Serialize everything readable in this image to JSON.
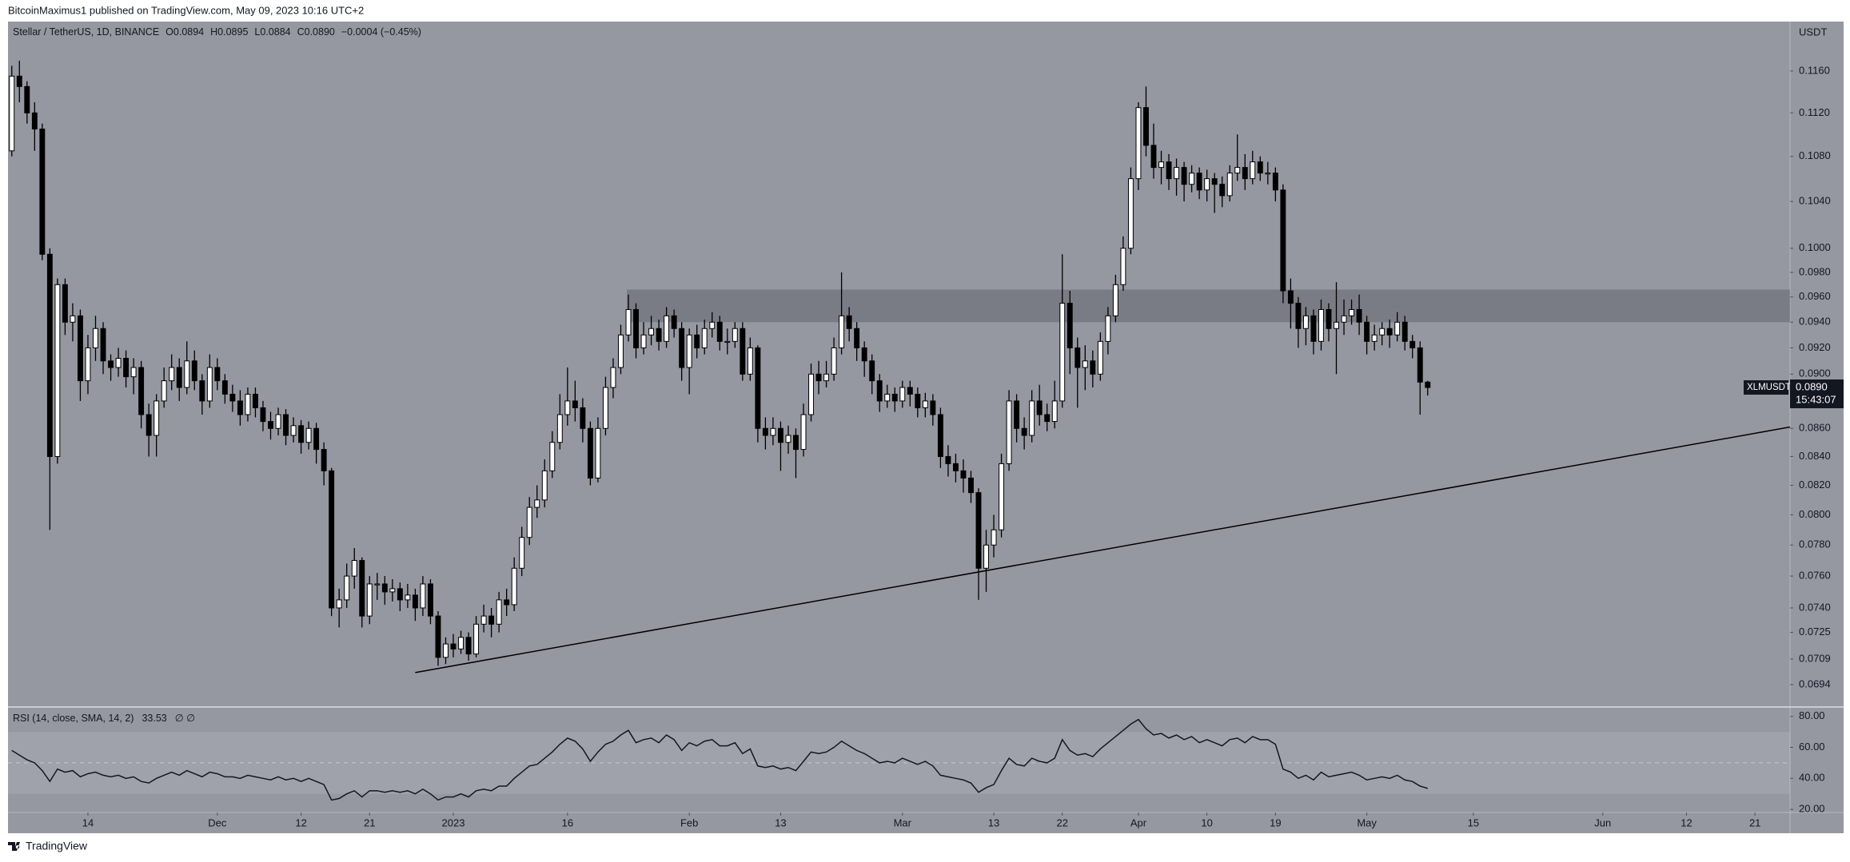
{
  "header": "BitcoinMaximus1 published on TradingView.com, May 09, 2023 10:16 UTC+2",
  "footer": "TradingView",
  "chart_data": [
    {
      "type": "candlestick",
      "title": "Stellar / TetherUS, 1D, BINANCE",
      "ohlc_legend": [
        {
          "key": "O",
          "value": "0.0894"
        },
        {
          "key": "H",
          "value": "0.0895"
        },
        {
          "key": "L",
          "value": "0.0884"
        },
        {
          "key": "C",
          "value": "0.0890"
        }
      ],
      "change": "−0.0004 (−0.45%)",
      "axis_unit": "USDT",
      "symbol": "XLMUSDT",
      "countdown": "15:43:07",
      "last_price": {
        "value": 0.089,
        "label": "0.0890"
      },
      "up_color": "#ffffff",
      "down_color": "#000000",
      "wick_color": "#000000",
      "log_scale": true,
      "grid": false,
      "xlim": [
        -0.5,
        233.6
      ],
      "ylim": [
        0.0682,
        0.1209
      ],
      "yticks": [
        {
          "value": 0.116,
          "label": "0.1160"
        },
        {
          "value": 0.112,
          "label": "0.1120"
        },
        {
          "value": 0.108,
          "label": "0.1080"
        },
        {
          "value": 0.104,
          "label": "0.1040"
        },
        {
          "value": 0.1,
          "label": "0.1000"
        },
        {
          "value": 0.098,
          "label": "0.0980"
        },
        {
          "value": 0.096,
          "label": "0.0960"
        },
        {
          "value": 0.094,
          "label": "0.0940"
        },
        {
          "value": 0.092,
          "label": "0.0920"
        },
        {
          "value": 0.09,
          "label": "0.0900"
        },
        {
          "value": 0.086,
          "label": "0.0860"
        },
        {
          "value": 0.084,
          "label": "0.0840"
        },
        {
          "value": 0.082,
          "label": "0.0820"
        },
        {
          "value": 0.08,
          "label": "0.0800"
        },
        {
          "value": 0.078,
          "label": "0.0780"
        },
        {
          "value": 0.076,
          "label": "0.0760"
        },
        {
          "value": 0.074,
          "label": "0.0740"
        },
        0.0725,
        0.0709,
        0.0694
      ],
      "open": [
        0.1085,
        0.1155,
        0.1145,
        0.112,
        0.1105,
        0.0995,
        0.084,
        0.097,
        0.094,
        0.0945,
        0.0895,
        0.092,
        0.0935,
        0.091,
        0.0905,
        0.0912,
        0.0898,
        0.0905,
        0.087,
        0.0855,
        0.088,
        0.0895,
        0.0905,
        0.089,
        0.091,
        0.0895,
        0.088,
        0.0905,
        0.0895,
        0.0885,
        0.088,
        0.087,
        0.0885,
        0.0875,
        0.0865,
        0.086,
        0.087,
        0.0855,
        0.0862,
        0.085,
        0.086,
        0.0845,
        0.083,
        0.074,
        0.0745,
        0.076,
        0.077,
        0.0735,
        0.0755,
        0.0755,
        0.075,
        0.0752,
        0.0745,
        0.0748,
        0.074,
        0.0755,
        0.0735,
        0.071,
        0.0718,
        0.0715,
        0.0722,
        0.0712,
        0.073,
        0.0735,
        0.073,
        0.0745,
        0.0742,
        0.0765,
        0.0785,
        0.0805,
        0.081,
        0.083,
        0.085,
        0.087,
        0.088,
        0.0875,
        0.086,
        0.0825,
        0.086,
        0.089,
        0.0905,
        0.093,
        0.095,
        0.092,
        0.093,
        0.0935,
        0.0925,
        0.0945,
        0.0935,
        0.0905,
        0.093,
        0.092,
        0.0935,
        0.094,
        0.0925,
        0.0925,
        0.0935,
        0.09,
        0.092,
        0.086,
        0.0855,
        0.086,
        0.085,
        0.0855,
        0.0845,
        0.087,
        0.09,
        0.0895,
        0.09,
        0.092,
        0.0945,
        0.0935,
        0.092,
        0.091,
        0.0895,
        0.088,
        0.0885,
        0.088,
        0.089,
        0.0885,
        0.0875,
        0.088,
        0.087,
        0.084,
        0.0835,
        0.083,
        0.0825,
        0.0815,
        0.0765,
        0.078,
        0.079,
        0.0835,
        0.088,
        0.086,
        0.0855,
        0.088,
        0.087,
        0.0865,
        0.088,
        0.0955,
        0.092,
        0.0905,
        0.091,
        0.09,
        0.0925,
        0.0945,
        0.097,
        0.1,
        0.106,
        0.1125,
        0.109,
        0.107,
        0.1075,
        0.106,
        0.107,
        0.1055,
        0.1065,
        0.105,
        0.106,
        0.1055,
        0.1045,
        0.1065,
        0.107,
        0.106,
        0.1075,
        0.1065,
        0.1065,
        0.105,
        0.0965,
        0.0955,
        0.0935,
        0.0945,
        0.0925,
        0.095,
        0.0935,
        0.094,
        0.0945,
        0.095,
        0.094,
        0.0925,
        0.093,
        0.0935,
        0.093,
        0.094,
        0.0925,
        0.092,
        0.0894
      ],
      "high": [
        0.1165,
        0.117,
        0.115,
        0.113,
        0.111,
        0.1,
        0.0975,
        0.0975,
        0.0955,
        0.095,
        0.093,
        0.0945,
        0.094,
        0.0915,
        0.092,
        0.0918,
        0.0912,
        0.091,
        0.0878,
        0.0885,
        0.0905,
        0.0915,
        0.0912,
        0.0925,
        0.0918,
        0.09,
        0.0915,
        0.0912,
        0.09,
        0.0892,
        0.0888,
        0.089,
        0.089,
        0.088,
        0.0872,
        0.0875,
        0.0874,
        0.0868,
        0.0866,
        0.0865,
        0.0864,
        0.085,
        0.0832,
        0.0752,
        0.0768,
        0.0778,
        0.0772,
        0.076,
        0.0762,
        0.076,
        0.0758,
        0.0756,
        0.0755,
        0.0752,
        0.076,
        0.0758,
        0.0738,
        0.0722,
        0.0724,
        0.0726,
        0.0725,
        0.0735,
        0.0742,
        0.074,
        0.075,
        0.0752,
        0.0772,
        0.0792,
        0.0812,
        0.082,
        0.0838,
        0.0858,
        0.0885,
        0.0905,
        0.0895,
        0.0882,
        0.0865,
        0.0868,
        0.0898,
        0.0912,
        0.0938,
        0.0962,
        0.0955,
        0.094,
        0.0945,
        0.0942,
        0.0952,
        0.095,
        0.094,
        0.0935,
        0.0938,
        0.0942,
        0.0948,
        0.0945,
        0.0935,
        0.094,
        0.094,
        0.0928,
        0.0922,
        0.0868,
        0.0868,
        0.0865,
        0.0862,
        0.086,
        0.0878,
        0.0908,
        0.091,
        0.091,
        0.0928,
        0.098,
        0.0952,
        0.094,
        0.0925,
        0.0915,
        0.09,
        0.0892,
        0.089,
        0.0895,
        0.0895,
        0.089,
        0.0886,
        0.0885,
        0.0875,
        0.0848,
        0.0842,
        0.0838,
        0.083,
        0.0818,
        0.079,
        0.08,
        0.0842,
        0.0888,
        0.0885,
        0.0868,
        0.0888,
        0.0892,
        0.0878,
        0.0895,
        0.0995,
        0.0965,
        0.0928,
        0.0922,
        0.0918,
        0.0932,
        0.0952,
        0.0978,
        0.101,
        0.107,
        0.113,
        0.1145,
        0.111,
        0.1085,
        0.1082,
        0.1078,
        0.1075,
        0.1072,
        0.107,
        0.1068,
        0.1065,
        0.1062,
        0.1072,
        0.11,
        0.1082,
        0.1085,
        0.108,
        0.1075,
        0.107,
        0.1055,
        0.0975,
        0.096,
        0.0952,
        0.095,
        0.0958,
        0.0955,
        0.0972,
        0.0958,
        0.0958,
        0.0962,
        0.0945,
        0.0938,
        0.094,
        0.0942,
        0.0948,
        0.0945,
        0.093,
        0.0925,
        0.0895
      ],
      "low": [
        0.108,
        0.113,
        0.111,
        0.1085,
        0.099,
        0.079,
        0.0835,
        0.093,
        0.0925,
        0.088,
        0.0885,
        0.091,
        0.09,
        0.0895,
        0.0898,
        0.089,
        0.0885,
        0.086,
        0.084,
        0.084,
        0.0875,
        0.0888,
        0.088,
        0.0885,
        0.0888,
        0.087,
        0.0875,
        0.0888,
        0.0878,
        0.0872,
        0.0862,
        0.0865,
        0.0868,
        0.0858,
        0.0852,
        0.0855,
        0.0848,
        0.085,
        0.0842,
        0.0845,
        0.0835,
        0.082,
        0.0735,
        0.0728,
        0.074,
        0.0752,
        0.0728,
        0.073,
        0.0745,
        0.0742,
        0.0744,
        0.0738,
        0.074,
        0.0732,
        0.0735,
        0.073,
        0.0705,
        0.0706,
        0.071,
        0.0712,
        0.0708,
        0.071,
        0.0725,
        0.0722,
        0.0725,
        0.0735,
        0.0738,
        0.076,
        0.078,
        0.0798,
        0.0805,
        0.0825,
        0.0845,
        0.0862,
        0.0865,
        0.085,
        0.082,
        0.0822,
        0.0855,
        0.0882,
        0.09,
        0.0925,
        0.0912,
        0.0915,
        0.0922,
        0.0918,
        0.092,
        0.0928,
        0.0895,
        0.0885,
        0.0912,
        0.0915,
        0.0928,
        0.0918,
        0.0915,
        0.092,
        0.0895,
        0.0895,
        0.085,
        0.0845,
        0.0848,
        0.083,
        0.0842,
        0.0825,
        0.084,
        0.0865,
        0.0885,
        0.089,
        0.0895,
        0.0915,
        0.0925,
        0.091,
        0.0898,
        0.0885,
        0.0872,
        0.0875,
        0.0872,
        0.0875,
        0.0876,
        0.0868,
        0.0868,
        0.0862,
        0.0832,
        0.0826,
        0.0822,
        0.0815,
        0.0808,
        0.0745,
        0.075,
        0.0772,
        0.0785,
        0.083,
        0.085,
        0.0845,
        0.085,
        0.0862,
        0.0858,
        0.086,
        0.0875,
        0.09,
        0.0875,
        0.0888,
        0.089,
        0.0895,
        0.0915,
        0.094,
        0.0965,
        0.0995,
        0.105,
        0.108,
        0.106,
        0.1055,
        0.105,
        0.1045,
        0.104,
        0.1048,
        0.1042,
        0.104,
        0.103,
        0.1035,
        0.104,
        0.1058,
        0.105,
        0.1055,
        0.1058,
        0.1055,
        0.104,
        0.0955,
        0.0935,
        0.092,
        0.0922,
        0.0915,
        0.0918,
        0.0925,
        0.09,
        0.093,
        0.0938,
        0.093,
        0.0915,
        0.0918,
        0.0922,
        0.092,
        0.0925,
        0.0918,
        0.0912,
        0.087,
        0.0884
      ],
      "close": [
        0.1155,
        0.1145,
        0.112,
        0.1105,
        0.0995,
        0.084,
        0.097,
        0.094,
        0.0945,
        0.0895,
        0.092,
        0.0935,
        0.091,
        0.0905,
        0.0912,
        0.0898,
        0.0905,
        0.087,
        0.0855,
        0.088,
        0.0895,
        0.0905,
        0.089,
        0.091,
        0.0895,
        0.088,
        0.0905,
        0.0895,
        0.0885,
        0.088,
        0.087,
        0.0885,
        0.0875,
        0.0865,
        0.086,
        0.087,
        0.0855,
        0.0862,
        0.085,
        0.086,
        0.0845,
        0.083,
        0.074,
        0.0745,
        0.076,
        0.077,
        0.0735,
        0.0755,
        0.0755,
        0.075,
        0.0752,
        0.0745,
        0.0748,
        0.074,
        0.0755,
        0.0735,
        0.071,
        0.0718,
        0.0715,
        0.0722,
        0.0712,
        0.073,
        0.0735,
        0.073,
        0.0745,
        0.0742,
        0.0765,
        0.0785,
        0.0805,
        0.081,
        0.083,
        0.085,
        0.087,
        0.088,
        0.0875,
        0.086,
        0.0825,
        0.086,
        0.089,
        0.0905,
        0.093,
        0.095,
        0.092,
        0.093,
        0.0935,
        0.0925,
        0.0945,
        0.0935,
        0.0905,
        0.093,
        0.092,
        0.0935,
        0.094,
        0.0925,
        0.0925,
        0.0935,
        0.09,
        0.092,
        0.086,
        0.0855,
        0.086,
        0.085,
        0.0855,
        0.0845,
        0.087,
        0.09,
        0.0895,
        0.09,
        0.092,
        0.0945,
        0.0935,
        0.092,
        0.091,
        0.0895,
        0.088,
        0.0885,
        0.088,
        0.089,
        0.0885,
        0.0875,
        0.088,
        0.087,
        0.084,
        0.0835,
        0.083,
        0.0825,
        0.0815,
        0.0765,
        0.078,
        0.079,
        0.0835,
        0.088,
        0.086,
        0.0855,
        0.088,
        0.087,
        0.0865,
        0.088,
        0.0955,
        0.092,
        0.0905,
        0.091,
        0.09,
        0.0925,
        0.0945,
        0.097,
        0.1,
        0.106,
        0.1125,
        0.109,
        0.107,
        0.1075,
        0.106,
        0.107,
        0.1055,
        0.1065,
        0.105,
        0.106,
        0.1055,
        0.1045,
        0.1065,
        0.107,
        0.106,
        0.1075,
        0.1065,
        0.1065,
        0.105,
        0.0965,
        0.0955,
        0.0935,
        0.0945,
        0.0925,
        0.095,
        0.0935,
        0.094,
        0.0945,
        0.095,
        0.094,
        0.0925,
        0.093,
        0.0935,
        0.093,
        0.094,
        0.0925,
        0.092,
        0.0894,
        0.089
      ],
      "zones": [
        {
          "x0": 80.8,
          "low": 0.094,
          "high": 0.0966,
          "color": "rgba(70,72,80,0.35)"
        }
      ],
      "trendlines": [
        {
          "x": [
            53.0,
            233.6
          ],
          "y": [
            0.0701,
            0.0861
          ],
          "color": "#000000"
        }
      ]
    },
    {
      "type": "line",
      "title": "RSI (14, close, SMA, 14, 2)",
      "na_labels": "∅ ∅",
      "color": "#131722",
      "xlim": [
        -0.5,
        233.6
      ],
      "ylim": [
        18.5,
        84.5
      ],
      "yticks": [
        {
          "value": 80,
          "label": "80.00"
        },
        {
          "value": 60,
          "label": "60.00"
        },
        {
          "value": 40,
          "label": "40.00"
        },
        {
          "value": 20,
          "label": "20.00"
        }
      ],
      "band": [
        30,
        70
      ],
      "midline": 50,
      "xticks": [
        {
          "value": 10,
          "label": "14"
        },
        {
          "value": 27,
          "label": "Dec"
        },
        {
          "value": 38,
          "label": "12"
        },
        {
          "value": 47,
          "label": "21"
        },
        {
          "value": 58,
          "label": "2023"
        },
        {
          "value": 73,
          "label": "16"
        },
        {
          "value": 89,
          "label": "Feb"
        },
        {
          "value": 101,
          "label": "13"
        },
        {
          "value": 117,
          "label": "Mar"
        },
        {
          "value": 129,
          "label": "13"
        },
        {
          "value": 138,
          "label": "22"
        },
        {
          "value": 148,
          "label": "Apr"
        },
        {
          "value": 157,
          "label": "10"
        },
        {
          "value": 166,
          "label": "19"
        },
        {
          "value": 178,
          "label": "May"
        },
        {
          "value": 192,
          "label": "15"
        },
        {
          "value": 209,
          "label": "Jun"
        },
        {
          "value": 220,
          "label": "12"
        },
        {
          "value": 229,
          "label": "21"
        }
      ],
      "values": [
        58,
        55,
        52,
        50,
        45,
        38,
        46,
        44,
        45,
        41,
        43,
        44,
        42,
        41,
        42,
        40,
        41,
        38,
        37,
        40,
        42,
        44,
        42,
        45,
        43,
        41,
        44,
        43,
        41,
        41,
        40,
        42,
        41,
        40,
        39,
        41,
        39,
        40,
        38,
        40,
        38,
        36,
        26,
        27,
        30,
        32,
        28,
        32,
        32,
        31,
        32,
        31,
        32,
        30,
        33,
        30,
        26,
        28,
        28,
        30,
        28,
        32,
        33,
        32,
        35,
        35,
        40,
        44,
        48,
        49,
        53,
        57,
        62,
        66,
        64,
        59,
        51,
        57,
        62,
        64,
        68,
        71,
        63,
        65,
        66,
        63,
        68,
        65,
        58,
        63,
        61,
        64,
        65,
        61,
        61,
        63,
        56,
        59,
        48,
        47,
        48,
        46,
        47,
        45,
        51,
        57,
        56,
        57,
        60,
        64,
        61,
        58,
        56,
        53,
        50,
        51,
        50,
        53,
        51,
        49,
        51,
        48,
        42,
        41,
        40,
        39,
        37,
        31,
        34,
        36,
        45,
        53,
        49,
        48,
        53,
        51,
        50,
        53,
        65,
        58,
        55,
        56,
        54,
        59,
        63,
        67,
        71,
        75,
        78,
        72,
        68,
        69,
        66,
        68,
        65,
        67,
        63,
        65,
        63,
        61,
        65,
        66,
        63,
        67,
        65,
        65,
        62,
        46,
        44,
        40,
        42,
        39,
        44,
        41,
        42,
        43,
        44,
        42,
        39,
        40,
        41,
        40,
        42,
        39,
        38,
        35,
        33.53
      ]
    }
  ]
}
